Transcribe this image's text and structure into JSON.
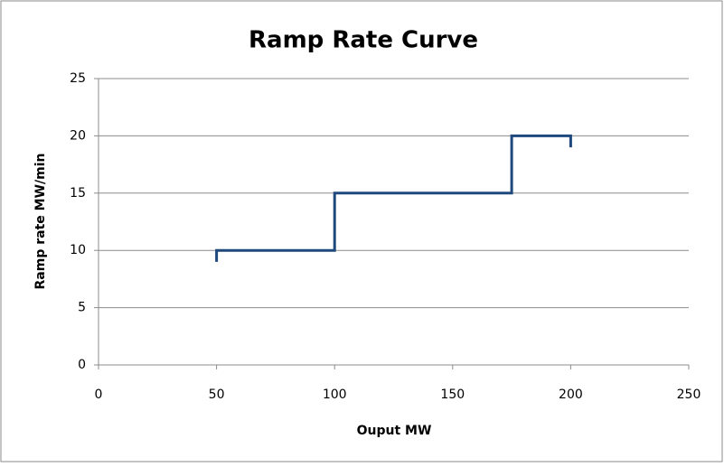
{
  "chart_data": {
    "type": "line",
    "title": "Ramp Rate Curve",
    "x_label": "Ouput MW",
    "y_label": "Ramp rate MW/min",
    "x": [
      50,
      50,
      100,
      100,
      175,
      175,
      200,
      200
    ],
    "values": [
      9,
      10,
      10,
      15,
      15,
      20,
      20,
      19
    ],
    "color": "#1f497d",
    "xlim": [
      0,
      250
    ],
    "xticks": [
      0,
      50,
      100,
      150,
      200,
      250
    ],
    "ylim": [
      0,
      25
    ],
    "yticks": [
      0,
      5,
      10,
      15,
      20,
      25
    ],
    "grid": true
  }
}
